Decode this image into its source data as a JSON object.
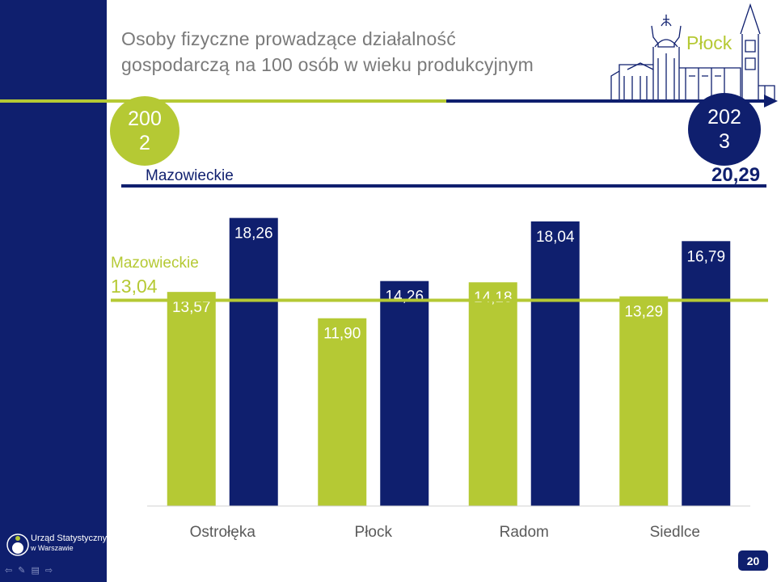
{
  "slide": {
    "title_line1": "Osoby fizyczne prowadzące działalność",
    "title_line2": "gospodarczą na 100 osób w wieku produkcyjnym",
    "city": "Płock",
    "year_start": "200\n2",
    "year_end": "202\n3",
    "mazowieckie_label": "Mazowieckie",
    "mazowieckie_2002": "13,04",
    "mazowieckie_2023": "20,29",
    "page_number": "20",
    "logo_line1": "Urząd Statystyczny",
    "logo_line2": "w Warszawie"
  },
  "colors": {
    "navy": "#0f1f6e",
    "green": "#b5c934",
    "gray_text": "#7a7a7a"
  },
  "nav_icons": [
    "arrow-left-icon",
    "pen-icon",
    "menu-icon",
    "arrow-right-icon"
  ],
  "chart_data": {
    "type": "bar",
    "categories": [
      "Ostrołęka",
      "Płock",
      "Radom",
      "Siedlce"
    ],
    "series": [
      {
        "name": "2002",
        "values": [
          13.57,
          11.9,
          14.18,
          13.29
        ],
        "labels": [
          "13,57",
          "11,90",
          "14,18",
          "13,29"
        ]
      },
      {
        "name": "2023",
        "values": [
          18.26,
          14.26,
          18.04,
          16.79
        ],
        "labels": [
          "18,26",
          "14,26",
          "18,04",
          "16,79"
        ]
      }
    ],
    "reference_lines": [
      {
        "name": "Mazowieckie",
        "year": "2002",
        "value": 13.04
      },
      {
        "name": "Mazowieckie",
        "year": "2023",
        "value": 20.29
      }
    ],
    "ylim": [
      0,
      20.29
    ],
    "grid": false,
    "legend": "none"
  }
}
